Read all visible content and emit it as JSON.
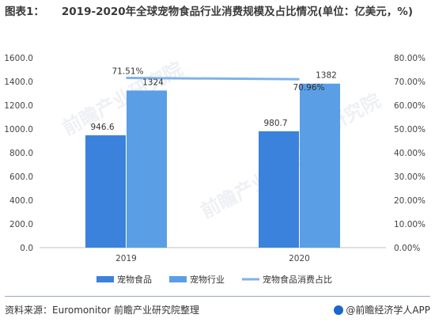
{
  "title": {
    "lead": "图表1：",
    "text": "2019-2020年全球宠物食品行业消费规模及占比情况(单位：亿美元，%)"
  },
  "watermark": "前瞻产业研究院",
  "footer": {
    "source": "资料来源：Euromonitor 前瞻产业研究院整理",
    "brand": "@前瞻经济学人APP"
  },
  "colors": {
    "pet_food": "#3a82dc",
    "pet_industry": "#5a9ee6",
    "share_line": "#7fb2ea",
    "axis": "#bfbfbf",
    "grid": "#d9d9d9"
  },
  "chart_data": {
    "type": "bar",
    "categories": [
      "2019",
      "2020"
    ],
    "series": [
      {
        "name": "宠物食品",
        "type": "bar",
        "axis": "left",
        "values": [
          946.6,
          980.7
        ],
        "labels": [
          "946.6",
          "980.7"
        ]
      },
      {
        "name": "宠物行业",
        "type": "bar",
        "axis": "left",
        "values": [
          1324,
          1382
        ],
        "labels": [
          "1324",
          "1382"
        ]
      },
      {
        "name": "宠物食品消费占比",
        "type": "line",
        "axis": "right",
        "values": [
          71.51,
          70.96
        ],
        "labels": [
          "71.51%",
          "70.96%"
        ]
      }
    ],
    "ylim": [
      0,
      1600
    ],
    "y_ticks": [
      "0.0",
      "200.0",
      "400.0",
      "600.0",
      "800.0",
      "1000.0",
      "1200.0",
      "1400.0",
      "1600.0"
    ],
    "y2lim": [
      0,
      80
    ],
    "y2_ticks": [
      "0.00%",
      "10.00%",
      "20.00%",
      "30.00%",
      "40.00%",
      "50.00%",
      "60.00%",
      "70.00%",
      "80.00%"
    ],
    "grid": false,
    "legend_position": "bottom"
  }
}
